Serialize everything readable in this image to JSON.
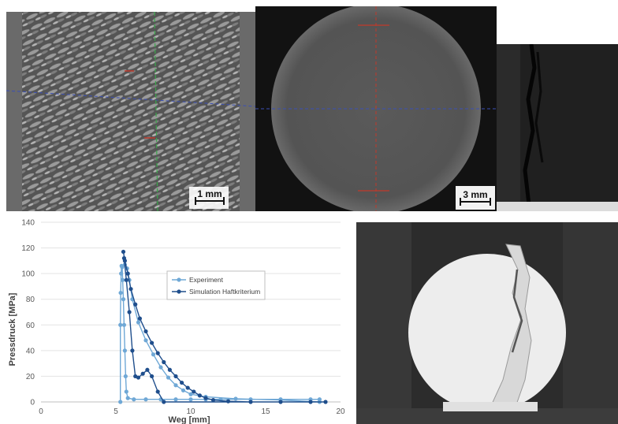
{
  "scale_bars": {
    "fibers": "1 mm",
    "disk": "3 mm"
  },
  "colors": {
    "experiment": "#6fa8d6",
    "simulation": "#1f4e8c",
    "crosshair_red": "#c0392b",
    "crosshair_blue": "#3b4fb5",
    "crosshair_green": "#3aa64a"
  },
  "chart_data": {
    "type": "line",
    "xlabel": "Weg [mm]",
    "ylabel": "Pressdruck [MPa]",
    "xlim": [
      0,
      20
    ],
    "ylim": [
      0,
      140
    ],
    "xticks": [
      0,
      5,
      10,
      15,
      20
    ],
    "yticks": [
      0,
      20,
      40,
      60,
      80,
      100,
      120,
      140
    ],
    "grid": "horizontal",
    "legend": "center",
    "series": [
      {
        "name": "Experiment",
        "points": [
          [
            5.3,
            0
          ],
          [
            5.3,
            60
          ],
          [
            5.32,
            85
          ],
          [
            5.35,
            100
          ],
          [
            5.38,
            106
          ],
          [
            5.42,
            105
          ],
          [
            5.45,
            95
          ],
          [
            5.5,
            80
          ],
          [
            5.55,
            60
          ],
          [
            5.6,
            40
          ],
          [
            5.65,
            20
          ],
          [
            5.7,
            8
          ],
          [
            5.8,
            3
          ],
          [
            6.2,
            2
          ],
          [
            7.0,
            2
          ],
          [
            8.0,
            2
          ],
          [
            9.0,
            2
          ],
          [
            10.0,
            2
          ],
          [
            11.0,
            2
          ],
          [
            12.0,
            2
          ],
          [
            14.0,
            2
          ],
          [
            16.0,
            2
          ],
          [
            18.0,
            2
          ],
          [
            18.6,
            2
          ],
          [
            18.6,
            0
          ],
          [
            16.0,
            1.5
          ],
          [
            13.0,
            2.5
          ],
          [
            11.0,
            4
          ],
          [
            10.0,
            6
          ],
          [
            9.5,
            9
          ],
          [
            9.0,
            13
          ],
          [
            8.5,
            19
          ],
          [
            8.0,
            27
          ],
          [
            7.5,
            37
          ],
          [
            7.0,
            48
          ],
          [
            6.5,
            62
          ],
          [
            6.1,
            80
          ],
          [
            5.9,
            95
          ],
          [
            5.75,
            104
          ],
          [
            5.6,
            107
          ]
        ]
      },
      {
        "name": "Simulation Haftkriterium",
        "points": [
          [
            5.5,
            117
          ],
          [
            5.6,
            110
          ],
          [
            5.8,
            100
          ],
          [
            6.0,
            88
          ],
          [
            6.3,
            76
          ],
          [
            6.6,
            65
          ],
          [
            7.0,
            55
          ],
          [
            7.4,
            46
          ],
          [
            7.8,
            38
          ],
          [
            8.2,
            31
          ],
          [
            8.6,
            25
          ],
          [
            9.0,
            20
          ],
          [
            9.4,
            15
          ],
          [
            9.8,
            11
          ],
          [
            10.2,
            8
          ],
          [
            10.6,
            5
          ],
          [
            11.0,
            3
          ],
          [
            11.5,
            1.5
          ],
          [
            12.5,
            0.5
          ],
          [
            14.0,
            0
          ],
          [
            16.0,
            0
          ],
          [
            18.0,
            0
          ],
          [
            19.0,
            0
          ],
          [
            8.2,
            0
          ],
          [
            7.8,
            8
          ],
          [
            7.4,
            20
          ],
          [
            7.1,
            25
          ],
          [
            6.8,
            22
          ],
          [
            6.5,
            19
          ],
          [
            6.3,
            20
          ],
          [
            6.1,
            40
          ],
          [
            5.9,
            70
          ],
          [
            5.7,
            95
          ],
          [
            5.55,
            112
          ]
        ]
      }
    ]
  }
}
